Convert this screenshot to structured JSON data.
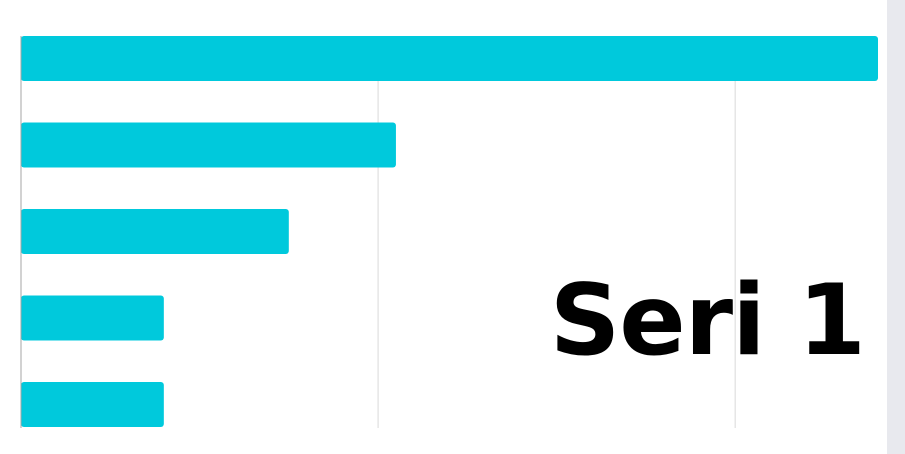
{
  "chart_data": {
    "type": "bar",
    "orientation": "horizontal",
    "categories": [
      "",
      "",
      "",
      "",
      ""
    ],
    "series": [
      {
        "name": "Seri 1",
        "values": [
          12,
          5.25,
          3.75,
          2,
          2
        ]
      }
    ],
    "xlim": [
      0,
      12
    ],
    "grid": true,
    "legend": "bottom-right",
    "colors": {
      "bar": "#00c9dc",
      "grid": "#d9d9d9",
      "axis": "#a6a6a6"
    }
  }
}
